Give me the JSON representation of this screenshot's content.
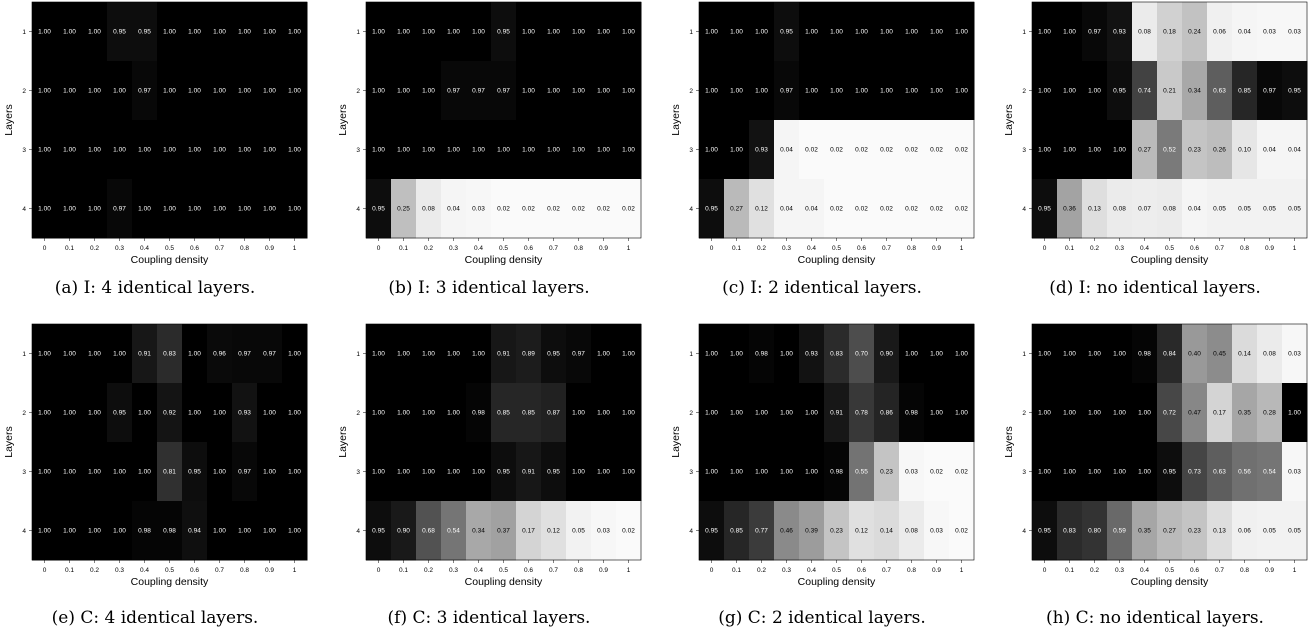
{
  "chart_data": [
    {
      "type": "heatmap",
      "caption": "(a) I: 4 identical layers.",
      "xlabel": "Coupling density",
      "ylabel": "Layers",
      "x": [
        "0",
        "0.1",
        "0.2",
        "0.3",
        "0.4",
        "0.5",
        "0.6",
        "0.7",
        "0.8",
        "0.9",
        "1"
      ],
      "y": [
        "1",
        "2",
        "3",
        "4"
      ],
      "values": [
        [
          1.0,
          1.0,
          1.0,
          0.95,
          0.95,
          1.0,
          1.0,
          1.0,
          1.0,
          1.0,
          1.0
        ],
        [
          1.0,
          1.0,
          1.0,
          1.0,
          0.97,
          1.0,
          1.0,
          1.0,
          1.0,
          1.0,
          1.0
        ],
        [
          1.0,
          1.0,
          1.0,
          1.0,
          1.0,
          1.0,
          1.0,
          1.0,
          1.0,
          1.0,
          1.0
        ],
        [
          1.0,
          1.0,
          1.0,
          0.97,
          1.0,
          1.0,
          1.0,
          1.0,
          1.0,
          1.0,
          1.0
        ]
      ]
    },
    {
      "type": "heatmap",
      "caption": "(b) I: 3 identical layers.",
      "xlabel": "Coupling density",
      "ylabel": "Layers",
      "x": [
        "0",
        "0.1",
        "0.2",
        "0.3",
        "0.4",
        "0.5",
        "0.6",
        "0.7",
        "0.8",
        "0.9",
        "1"
      ],
      "y": [
        "1",
        "2",
        "3",
        "4"
      ],
      "values": [
        [
          1.0,
          1.0,
          1.0,
          1.0,
          1.0,
          0.95,
          1.0,
          1.0,
          1.0,
          1.0,
          1.0
        ],
        [
          1.0,
          1.0,
          1.0,
          0.97,
          0.97,
          0.97,
          1.0,
          1.0,
          1.0,
          1.0,
          1.0
        ],
        [
          1.0,
          1.0,
          1.0,
          1.0,
          1.0,
          1.0,
          1.0,
          1.0,
          1.0,
          1.0,
          1.0
        ],
        [
          0.95,
          0.25,
          0.08,
          0.04,
          0.03,
          0.02,
          0.02,
          0.02,
          0.02,
          0.02,
          0.02
        ]
      ]
    },
    {
      "type": "heatmap",
      "caption": "(c) I: 2 identical layers.",
      "xlabel": "Coupling density",
      "ylabel": "Layers",
      "x": [
        "0",
        "0.1",
        "0.2",
        "0.3",
        "0.4",
        "0.5",
        "0.6",
        "0.7",
        "0.8",
        "0.9",
        "1"
      ],
      "y": [
        "1",
        "2",
        "3",
        "4"
      ],
      "values": [
        [
          1.0,
          1.0,
          1.0,
          0.95,
          1.0,
          1.0,
          1.0,
          1.0,
          1.0,
          1.0,
          1.0
        ],
        [
          1.0,
          1.0,
          1.0,
          0.97,
          1.0,
          1.0,
          1.0,
          1.0,
          1.0,
          1.0,
          1.0
        ],
        [
          1.0,
          1.0,
          0.93,
          0.04,
          0.02,
          0.02,
          0.02,
          0.02,
          0.02,
          0.02,
          0.02
        ],
        [
          0.95,
          0.27,
          0.12,
          0.04,
          0.04,
          0.02,
          0.02,
          0.02,
          0.02,
          0.02,
          0.02
        ]
      ]
    },
    {
      "type": "heatmap",
      "caption": "(d) I: no identical layers.",
      "xlabel": "Coupling density",
      "ylabel": "Layers",
      "x": [
        "0",
        "0.1",
        "0.2",
        "0.3",
        "0.4",
        "0.5",
        "0.6",
        "0.7",
        "0.8",
        "0.9",
        "1"
      ],
      "y": [
        "1",
        "2",
        "3",
        "4"
      ],
      "values": [
        [
          1.0,
          1.0,
          0.97,
          0.93,
          0.08,
          0.18,
          0.24,
          0.06,
          0.04,
          0.03,
          0.03
        ],
        [
          1.0,
          1.0,
          1.0,
          0.95,
          0.74,
          0.21,
          0.34,
          0.63,
          0.85,
          0.97,
          0.95
        ],
        [
          1.0,
          1.0,
          1.0,
          1.0,
          0.27,
          0.52,
          0.23,
          0.26,
          0.1,
          0.04,
          0.04
        ],
        [
          0.95,
          0.36,
          0.13,
          0.08,
          0.07,
          0.08,
          0.04,
          0.05,
          0.05,
          0.05,
          0.05
        ]
      ]
    },
    {
      "type": "heatmap",
      "caption": "(e) C: 4 identical layers.",
      "xlabel": "Coupling density",
      "ylabel": "Layers",
      "x": [
        "0",
        "0.1",
        "0.2",
        "0.3",
        "0.4",
        "0.5",
        "0.6",
        "0.7",
        "0.8",
        "0.9",
        "1"
      ],
      "y": [
        "1",
        "2",
        "3",
        "4"
      ],
      "values": [
        [
          1.0,
          1.0,
          1.0,
          1.0,
          0.91,
          0.83,
          1.0,
          0.96,
          0.97,
          0.97,
          1.0
        ],
        [
          1.0,
          1.0,
          1.0,
          0.95,
          1.0,
          0.92,
          1.0,
          1.0,
          0.93,
          1.0,
          1.0
        ],
        [
          1.0,
          1.0,
          1.0,
          1.0,
          1.0,
          0.81,
          0.95,
          1.0,
          0.97,
          1.0,
          1.0
        ],
        [
          1.0,
          1.0,
          1.0,
          1.0,
          0.98,
          0.98,
          0.94,
          1.0,
          1.0,
          1.0,
          1.0
        ]
      ]
    },
    {
      "type": "heatmap",
      "caption": "(f) C: 3 identical layers.",
      "xlabel": "Coupling density",
      "ylabel": "Layers",
      "x": [
        "0",
        "0.1",
        "0.2",
        "0.3",
        "0.4",
        "0.5",
        "0.6",
        "0.7",
        "0.8",
        "0.9",
        "1"
      ],
      "y": [
        "1",
        "2",
        "3",
        "4"
      ],
      "values": [
        [
          1.0,
          1.0,
          1.0,
          1.0,
          1.0,
          0.91,
          0.89,
          0.95,
          0.97,
          1.0,
          1.0
        ],
        [
          1.0,
          1.0,
          1.0,
          1.0,
          0.98,
          0.85,
          0.85,
          0.87,
          1.0,
          1.0,
          1.0
        ],
        [
          1.0,
          1.0,
          1.0,
          1.0,
          1.0,
          0.95,
          0.91,
          0.95,
          1.0,
          1.0,
          1.0
        ],
        [
          0.95,
          0.9,
          0.68,
          0.54,
          0.34,
          0.37,
          0.17,
          0.12,
          0.05,
          0.03,
          0.02
        ]
      ]
    },
    {
      "type": "heatmap",
      "caption": "(g) C: 2 identical layers.",
      "xlabel": "Coupling density",
      "ylabel": "Layers",
      "x": [
        "0",
        "0.1",
        "0.2",
        "0.3",
        "0.4",
        "0.5",
        "0.6",
        "0.7",
        "0.8",
        "0.9",
        "1"
      ],
      "y": [
        "1",
        "2",
        "3",
        "4"
      ],
      "values": [
        [
          1.0,
          1.0,
          0.98,
          1.0,
          0.93,
          0.83,
          0.7,
          0.9,
          1.0,
          1.0,
          1.0
        ],
        [
          1.0,
          1.0,
          1.0,
          1.0,
          1.0,
          0.91,
          0.78,
          0.86,
          0.98,
          1.0,
          1.0
        ],
        [
          1.0,
          1.0,
          1.0,
          1.0,
          1.0,
          0.98,
          0.55,
          0.23,
          0.03,
          0.02,
          0.02
        ],
        [
          0.95,
          0.85,
          0.77,
          0.46,
          0.39,
          0.23,
          0.12,
          0.14,
          0.08,
          0.03,
          0.02
        ]
      ]
    },
    {
      "type": "heatmap",
      "caption": "(h) C: no identical layers.",
      "xlabel": "Coupling density",
      "ylabel": "Layers",
      "x": [
        "0",
        "0.1",
        "0.2",
        "0.3",
        "0.4",
        "0.5",
        "0.6",
        "0.7",
        "0.8",
        "0.9",
        "1"
      ],
      "y": [
        "1",
        "2",
        "3",
        "4"
      ],
      "values": [
        [
          1.0,
          1.0,
          1.0,
          1.0,
          0.98,
          0.84,
          0.4,
          0.45,
          0.14,
          0.08,
          0.03
        ],
        [
          1.0,
          1.0,
          1.0,
          1.0,
          1.0,
          0.72,
          0.47,
          0.17,
          0.35,
          0.28,
          1.0
        ],
        [
          1.0,
          1.0,
          1.0,
          1.0,
          1.0,
          0.95,
          0.73,
          0.63,
          0.56,
          0.54,
          0.03
        ],
        [
          0.95,
          0.83,
          0.8,
          0.59,
          0.35,
          0.27,
          0.23,
          0.13,
          0.06,
          0.05,
          0.05
        ]
      ]
    }
  ]
}
